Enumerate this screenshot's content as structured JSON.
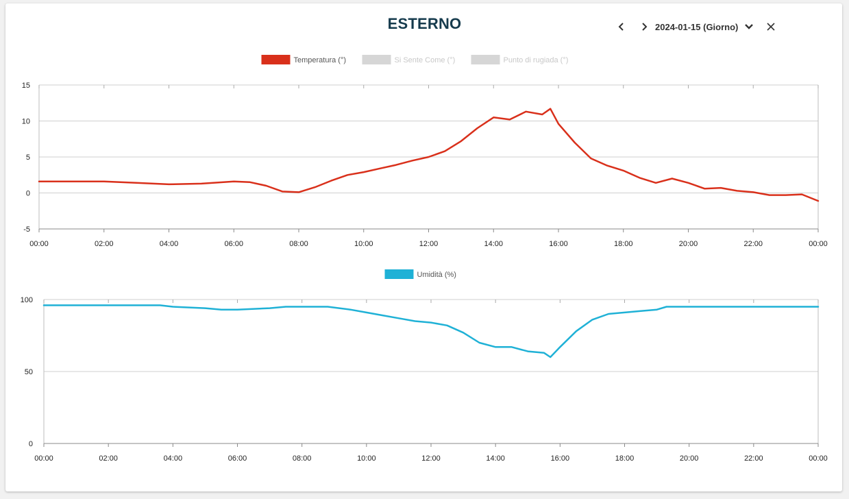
{
  "header": {
    "title": "ESTERNO",
    "date_label": "2024-01-15 (Giorno)"
  },
  "icons": {
    "prev": "chevron-left-icon",
    "next": "chevron-right-icon",
    "dropdown": "chevron-down-icon",
    "close": "close-icon"
  },
  "chart_data": [
    {
      "type": "line",
      "legend_placement": "top-center",
      "grid": true,
      "ylim": [
        -5,
        15
      ],
      "yticks": [
        "15",
        "10",
        "5",
        "0",
        "-5"
      ],
      "xticks": [
        "00:00",
        "02:00",
        "04:00",
        "06:00",
        "08:00",
        "10:00",
        "12:00",
        "14:00",
        "16:00",
        "18:00",
        "20:00",
        "22:00",
        "00:00"
      ],
      "x_hours": [
        0,
        0.5,
        1,
        2,
        3,
        4,
        5,
        6,
        6.5,
        7,
        7.5,
        8,
        8.5,
        9,
        9.5,
        10,
        10.5,
        11,
        11.5,
        12,
        12.5,
        13,
        13.5,
        14,
        14.5,
        15,
        15.5,
        15.75,
        16,
        16.5,
        17,
        17.5,
        18,
        18.5,
        19,
        19.5,
        20,
        20.5,
        21,
        21.5,
        22,
        22.5,
        23,
        23.5,
        24
      ],
      "series": [
        {
          "name": "Temperatura (°)",
          "color": "#d9301b",
          "active": true,
          "values": [
            1.6,
            1.6,
            1.6,
            1.6,
            1.4,
            1.2,
            1.3,
            1.6,
            1.5,
            1.0,
            0.2,
            0.1,
            0.8,
            1.7,
            2.5,
            2.9,
            3.4,
            3.9,
            4.5,
            5.0,
            5.8,
            7.2,
            9.0,
            10.5,
            10.2,
            11.3,
            10.9,
            11.7,
            9.6,
            7.0,
            4.8,
            3.8,
            3.1,
            2.1,
            1.4,
            2.0,
            1.4,
            0.6,
            0.7,
            0.3,
            0.1,
            -0.3,
            -0.3,
            -0.2,
            -1.1
          ]
        },
        {
          "name": "Si Sente Come (°)",
          "color": "#d6d6d6",
          "active": false,
          "values": []
        },
        {
          "name": "Punto di rugiada (°)",
          "color": "#d6d6d6",
          "active": false,
          "values": []
        }
      ]
    },
    {
      "type": "line",
      "legend_placement": "top-center",
      "grid": true,
      "ylim": [
        0,
        100
      ],
      "yticks": [
        "100",
        "50",
        "0"
      ],
      "xticks": [
        "00:00",
        "02:00",
        "04:00",
        "06:00",
        "08:00",
        "10:00",
        "12:00",
        "14:00",
        "16:00",
        "18:00",
        "20:00",
        "22:00",
        "00:00"
      ],
      "x_hours": [
        0,
        1,
        2,
        3,
        3.6,
        4,
        5,
        5.5,
        6,
        7,
        7.5,
        8,
        8.8,
        9.5,
        10,
        10.5,
        11,
        11.5,
        12,
        12.5,
        13,
        13.5,
        14,
        14.5,
        15,
        15.5,
        15.7,
        16,
        16.5,
        17,
        17.5,
        18,
        18.5,
        19,
        19.3,
        20,
        21,
        22,
        23,
        24
      ],
      "series": [
        {
          "name": "Umidità (%)",
          "color": "#1fb1d6",
          "active": true,
          "values": [
            96,
            96,
            96,
            96,
            96,
            95,
            94,
            93,
            93,
            94,
            95,
            95,
            95,
            93,
            91,
            89,
            87,
            85,
            84,
            82,
            77,
            70,
            67,
            67,
            64,
            63,
            60,
            67,
            78,
            86,
            90,
            91,
            92,
            93,
            95,
            95,
            95,
            95,
            95,
            95
          ]
        }
      ]
    }
  ]
}
